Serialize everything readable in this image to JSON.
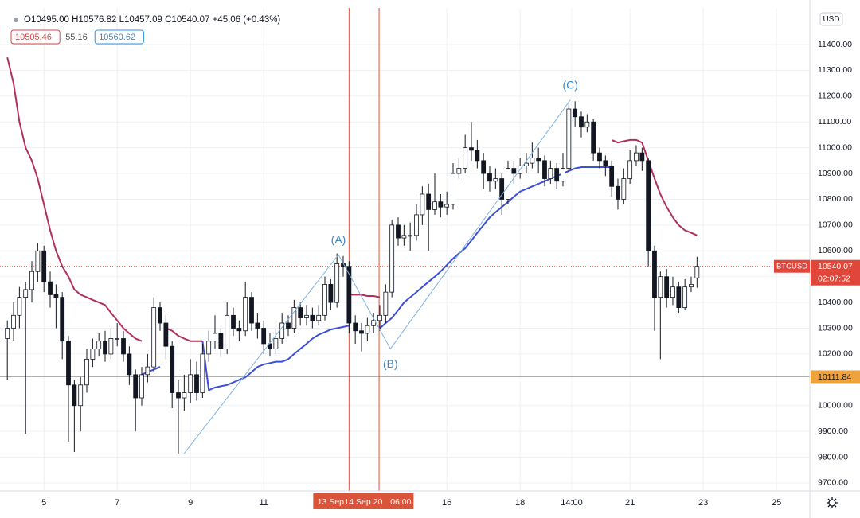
{
  "chart_data": {
    "type": "candlestick",
    "header": {
      "ohlc": "O10495.00 H10576.82 L10457.09 C10540.07 +45.06 (+0.43%)",
      "indicators": [
        {
          "value": 10505.46,
          "color": "#d24a4a"
        },
        {
          "value": 55.16,
          "color": "#555555"
        },
        {
          "value": 10560.62,
          "color": "#2f8fd8"
        }
      ]
    },
    "currency": "USD",
    "x": [
      4,
      4.17,
      4.33,
      4.5,
      4.67,
      4.83,
      5,
      5.17,
      5.33,
      5.5,
      5.67,
      5.83,
      6,
      6.17,
      6.33,
      6.5,
      6.67,
      6.83,
      7,
      7.17,
      7.33,
      7.5,
      7.67,
      7.83,
      8,
      8.17,
      8.33,
      8.5,
      8.67,
      8.83,
      9,
      9.17,
      9.33,
      9.5,
      9.67,
      9.83,
      10,
      10.17,
      10.33,
      10.5,
      10.67,
      10.83,
      11,
      11.17,
      11.33,
      11.5,
      11.67,
      11.83,
      12,
      12.17,
      12.33,
      12.5,
      12.67,
      12.83,
      13,
      13.17,
      13.33,
      13.5,
      13.67,
      13.83,
      14,
      14.17,
      14.33,
      14.5,
      14.67,
      14.83,
      15,
      15.17,
      15.33,
      15.5,
      15.67,
      15.83,
      16,
      16.17,
      16.33,
      16.5,
      16.67,
      16.83,
      17,
      17.17,
      17.33,
      17.5,
      17.67,
      17.83,
      18,
      18.17,
      18.33,
      18.5,
      18.67,
      18.83,
      19,
      19.17,
      19.33,
      19.5,
      19.67,
      19.83,
      20,
      20.17,
      20.33,
      20.5,
      20.67,
      20.83,
      21,
      21.17,
      21.33,
      21.5,
      21.67,
      21.83,
      22,
      22.17,
      22.33,
      22.5,
      22.67,
      22.83
    ],
    "open": [
      10260,
      10300,
      10350,
      10420,
      10450,
      10520,
      10600,
      10480,
      10430,
      10420,
      10250,
      10080,
      10000,
      10080,
      10180,
      10220,
      10250,
      10200,
      10260,
      10260,
      10200,
      10120,
      10030,
      10120,
      10150,
      10380,
      10320,
      10230,
      10050,
      10030,
      10050,
      10120,
      10050,
      10200,
      10250,
      10280,
      10220,
      10350,
      10300,
      10290,
      10420,
      10320,
      10300,
      10240,
      10220,
      10260,
      10320,
      10300,
      10380,
      10340,
      10350,
      10330,
      10350,
      10470,
      10400,
      10550,
      10540,
      10320,
      10290,
      10280,
      10310,
      10330,
      10350,
      10440,
      10700,
      10650,
      10660,
      10660,
      10740,
      10820,
      10760,
      10790,
      10770,
      10780,
      10900,
      10920,
      11000,
      10990,
      10950,
      10900,
      10870,
      10880,
      10800,
      10920,
      10900,
      10930,
      10940,
      10960,
      10950,
      10880,
      10920,
      10870,
      10920,
      11150,
      11120,
      11080,
      11100,
      10980,
      10950,
      10930,
      10850,
      10800,
      10880,
      10950,
      10980,
      10950,
      10600,
      10420,
      10500,
      10420,
      10460,
      10380,
      10460,
      10495
    ],
    "high": [
      10330,
      10400,
      10460,
      10480,
      10560,
      10630,
      10620,
      10520,
      10470,
      10440,
      10270,
      10100,
      10110,
      10220,
      10260,
      10280,
      10290,
      10300,
      10320,
      10290,
      10230,
      10140,
      10150,
      10200,
      10420,
      10400,
      10350,
      10250,
      10100,
      10120,
      10180,
      10170,
      10240,
      10290,
      10350,
      10300,
      10400,
      10380,
      10330,
      10480,
      10440,
      10360,
      10330,
      10280,
      10300,
      10360,
      10350,
      10410,
      10400,
      10390,
      10380,
      10390,
      10500,
      10490,
      10590,
      10580,
      10560,
      10350,
      10320,
      10340,
      10360,
      10390,
      10470,
      10720,
      10730,
      10700,
      10710,
      10780,
      10850,
      10860,
      10900,
      10820,
      10830,
      10940,
      10960,
      11050,
      11100,
      11030,
      10980,
      10930,
      10920,
      10900,
      10950,
      10950,
      10960,
      10980,
      11020,
      11000,
      10970,
      10950,
      10940,
      10980,
      11170,
      11180,
      11140,
      11130,
      11110,
      11000,
      10970,
      10950,
      10880,
      10920,
      10990,
      11010,
      11000,
      10960,
      10620,
      10520,
      10530,
      10500,
      10480,
      10490,
      10500,
      10576.82
    ],
    "low": [
      10100,
      10250,
      10300,
      9890,
      10400,
      10480,
      10440,
      10380,
      10300,
      10180,
      9860,
      9820,
      9900,
      10050,
      10150,
      10190,
      10170,
      10180,
      10230,
      10170,
      10080,
      9900,
      10000,
      10090,
      10130,
      10290,
      10180,
      9990,
      9815,
      9980,
      10010,
      10020,
      10030,
      10170,
      10220,
      10190,
      10200,
      10270,
      10250,
      10270,
      10290,
      10260,
      10200,
      10190,
      10200,
      10240,
      10270,
      10280,
      10310,
      10310,
      10300,
      10310,
      10330,
      10370,
      10380,
      10500,
      10280,
      10240,
      10210,
      10250,
      10280,
      10290,
      10320,
      10420,
      10620,
      10620,
      10600,
      10640,
      10700,
      10600,
      10740,
      10730,
      10740,
      10760,
      10880,
      10900,
      10950,
      10920,
      10840,
      10830,
      10840,
      10740,
      10780,
      10860,
      10880,
      10900,
      10920,
      10900,
      10850,
      10860,
      10840,
      10850,
      10900,
      11080,
      11040,
      11060,
      10950,
      10920,
      10890,
      10810,
      10760,
      10780,
      10860,
      10930,
      10910,
      10540,
      10290,
      10180,
      10380,
      10390,
      10360,
      10370,
      10440,
      10457.09
    ],
    "close": [
      10300,
      10350,
      10420,
      10450,
      10520,
      10600,
      10480,
      10430,
      10420,
      10250,
      10080,
      10000,
      10080,
      10180,
      10220,
      10250,
      10200,
      10260,
      10260,
      10200,
      10120,
      10030,
      10120,
      10150,
      10380,
      10320,
      10230,
      10050,
      10030,
      10050,
      10120,
      10050,
      10200,
      10250,
      10280,
      10220,
      10350,
      10300,
      10290,
      10420,
      10320,
      10300,
      10240,
      10220,
      10260,
      10320,
      10300,
      10380,
      10340,
      10350,
      10330,
      10350,
      10470,
      10400,
      10550,
      10540,
      10320,
      10290,
      10280,
      10310,
      10330,
      10350,
      10440,
      10700,
      10650,
      10660,
      10660,
      10740,
      10820,
      10760,
      10790,
      10770,
      10780,
      10900,
      10920,
      11000,
      10990,
      10950,
      10900,
      10870,
      10880,
      10800,
      10920,
      10900,
      10930,
      10940,
      10960,
      10950,
      10880,
      10920,
      10870,
      10920,
      11150,
      11120,
      11080,
      11100,
      10980,
      10950,
      10930,
      10850,
      10800,
      10880,
      10950,
      10980,
      10950,
      10600,
      10420,
      10500,
      10420,
      10460,
      10380,
      10460,
      10470,
      10540.07
    ],
    "up_color": "#ffffff",
    "down_color": "#131722",
    "lines": [
      {
        "color": "#b0305c",
        "values": [
          11350,
          11250,
          11100,
          11000,
          10950,
          10880,
          10780,
          10680,
          10600,
          10540,
          10500,
          10450,
          10430,
          10420,
          10410,
          10400,
          10390,
          10360,
          10330,
          10300,
          10280,
          10260,
          10250,
          null,
          null,
          null,
          10300,
          10290,
          10270,
          10260,
          10250,
          10250,
          10250,
          null,
          null,
          null,
          null,
          null,
          null,
          null,
          null,
          null,
          null,
          null,
          null,
          null,
          null,
          null,
          null,
          null,
          null,
          null,
          null,
          null,
          null,
          null,
          10430,
          10430,
          10430,
          10425,
          10425,
          10420,
          null,
          null,
          null,
          null,
          null,
          null,
          null,
          null,
          null,
          null,
          null,
          null,
          null,
          null,
          null,
          null,
          null,
          null,
          null,
          null,
          null,
          null,
          null,
          null,
          null,
          null,
          null,
          null,
          null,
          null,
          null,
          null,
          null,
          null,
          null,
          null,
          null,
          11030,
          11020,
          11025,
          11030,
          11030,
          11020,
          10950,
          10880,
          10820,
          10770,
          10730,
          10700,
          10680,
          10670,
          10660
        ]
      },
      {
        "color": "#3d4fd6",
        "values": [
          null,
          null,
          null,
          null,
          null,
          null,
          null,
          null,
          null,
          null,
          null,
          null,
          null,
          null,
          null,
          null,
          null,
          null,
          null,
          null,
          null,
          null,
          10120,
          10130,
          10140,
          10150,
          null,
          null,
          null,
          null,
          null,
          null,
          10250,
          10060,
          10070,
          10075,
          10080,
          10090,
          10100,
          10110,
          10130,
          10150,
          10160,
          10165,
          10170,
          10170,
          10180,
          10200,
          10220,
          10240,
          10260,
          10275,
          10285,
          10295,
          10300,
          10305,
          10310,
          null,
          null,
          null,
          null,
          10300,
          10320,
          10340,
          10370,
          10400,
          10420,
          10440,
          10460,
          10480,
          10500,
          10520,
          10545,
          10570,
          10590,
          10610,
          10640,
          10670,
          10700,
          10730,
          10750,
          10770,
          10790,
          10810,
          10830,
          10840,
          10850,
          10860,
          10870,
          10880,
          10890,
          10900,
          10910,
          10920,
          10925,
          10925,
          10925,
          10925,
          10925,
          10925,
          null,
          null,
          null,
          null,
          null,
          null,
          null,
          null,
          null,
          null,
          null,
          null,
          null,
          null
        ]
      }
    ],
    "wave": {
      "x": [
        8.83,
        13.04,
        14.46,
        19.37
      ],
      "y": [
        9815,
        10585,
        10220,
        11185
      ],
      "labels": [
        "(A)",
        "(B)",
        "(C)"
      ],
      "color": "#7fb3e0",
      "label_color": "#3d86c6"
    },
    "price_line": {
      "name": "BTCUSD",
      "value": 10540.07,
      "countdown": "02:07:52",
      "color": "#e0463a"
    },
    "level_line": {
      "value": 10111.84,
      "color": "#f0a23c"
    },
    "vlines": {
      "x": [
        13.33,
        14.15
      ],
      "labels": [
        "13 Sep",
        "14 Sep 20",
        "06:00"
      ],
      "color": "#d9543a"
    },
    "xlim": [
      3.8,
      25.91
    ],
    "ylim": [
      9669,
      11542
    ],
    "xticks": [
      5,
      7,
      9,
      11,
      16,
      18,
      {
        "value": 19.41,
        "label": "14:00"
      },
      21,
      23,
      25
    ],
    "yticks": [
      {
        "value": 9700,
        "label": "9700.00"
      },
      {
        "value": 9800,
        "label": "9800.00"
      },
      {
        "value": 9900,
        "label": "9900.00"
      },
      {
        "value": 10000,
        "label": "10000.00"
      },
      {
        "value": 10100,
        "label": "10100.00"
      },
      {
        "value": 10200,
        "label": "10200.00"
      },
      {
        "value": 10300,
        "label": "10300.00"
      },
      {
        "value": 10400,
        "label": "10400.00"
      },
      {
        "value": 10500,
        "label": "10500.00"
      },
      {
        "value": 10600,
        "label": "10600.00"
      },
      {
        "value": 10700,
        "label": "10700.00"
      },
      {
        "value": 10800,
        "label": "10800.00"
      },
      {
        "value": 10900,
        "label": "10900.00"
      },
      {
        "value": 11000,
        "label": "11000.00"
      },
      {
        "value": 11100,
        "label": "11100.00"
      },
      {
        "value": 11200,
        "label": "11200.00"
      },
      {
        "value": 11300,
        "label": "11300.00"
      },
      {
        "value": 11400,
        "label": "11400.00"
      }
    ],
    "grid": true
  }
}
